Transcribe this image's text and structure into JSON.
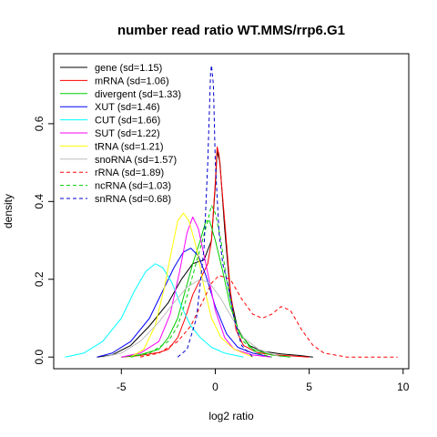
{
  "chart_data": {
    "type": "line",
    "title": "number read ratio WT.MMS/rrp6.G1",
    "xlabel": "log2 ratio",
    "ylabel": "density",
    "xlim": [
      -8.6,
      10.3
    ],
    "ylim": [
      -0.03,
      0.78
    ],
    "x_ticks": [
      -5,
      0,
      5,
      10
    ],
    "x_tick_labels": [
      "-5",
      "0",
      "5",
      "10"
    ],
    "y_ticks": [
      0.0,
      0.2,
      0.4,
      0.6
    ],
    "y_tick_labels": [
      "0.0",
      "0.2",
      "0.4",
      "0.6"
    ],
    "grid": false,
    "legend_position": "top-left",
    "series": [
      {
        "name": "gene (sd=1.15)",
        "color": "#000000",
        "dash": "solid",
        "points": [
          [
            -6.3,
            0
          ],
          [
            -5.5,
            0.005
          ],
          [
            -4.5,
            0.03
          ],
          [
            -3.5,
            0.08
          ],
          [
            -2.5,
            0.14
          ],
          [
            -1.8,
            0.2
          ],
          [
            -1.2,
            0.24
          ],
          [
            -0.6,
            0.25
          ],
          [
            -0.2,
            0.3
          ],
          [
            0,
            0.44
          ],
          [
            0.1,
            0.53
          ],
          [
            0.25,
            0.5
          ],
          [
            0.5,
            0.33
          ],
          [
            0.8,
            0.16
          ],
          [
            1.2,
            0.07
          ],
          [
            1.8,
            0.03
          ],
          [
            2.5,
            0.015
          ],
          [
            3.5,
            0.008
          ],
          [
            4.5,
            0.004
          ],
          [
            5.2,
            0
          ]
        ]
      },
      {
        "name": "mRNA (sd=1.06)",
        "color": "#ff0000",
        "dash": "solid",
        "points": [
          [
            -5,
            0
          ],
          [
            -4,
            0.004
          ],
          [
            -3,
            0.012
          ],
          [
            -2.5,
            0.02
          ],
          [
            -2,
            0.05
          ],
          [
            -1.6,
            0.1
          ],
          [
            -1.2,
            0.16
          ],
          [
            -0.8,
            0.2
          ],
          [
            -0.4,
            0.24
          ],
          [
            -0.2,
            0.3
          ],
          [
            0,
            0.45
          ],
          [
            0.1,
            0.54
          ],
          [
            0.2,
            0.52
          ],
          [
            0.5,
            0.35
          ],
          [
            0.8,
            0.17
          ],
          [
            1.1,
            0.07
          ],
          [
            1.5,
            0.03
          ],
          [
            2.2,
            0.012
          ],
          [
            3,
            0.006
          ],
          [
            4,
            0.003
          ],
          [
            5,
            0
          ]
        ]
      },
      {
        "name": "divergent (sd=1.33)",
        "color": "#00cd00",
        "dash": "solid",
        "points": [
          [
            -5,
            0
          ],
          [
            -4,
            0.006
          ],
          [
            -3,
            0.02
          ],
          [
            -2.5,
            0.05
          ],
          [
            -2,
            0.1
          ],
          [
            -1.6,
            0.17
          ],
          [
            -1.2,
            0.24
          ],
          [
            -0.8,
            0.3
          ],
          [
            -0.5,
            0.35
          ],
          [
            -0.3,
            0.35
          ],
          [
            0,
            0.3
          ],
          [
            0.4,
            0.22
          ],
          [
            0.8,
            0.13
          ],
          [
            1.3,
            0.06
          ],
          [
            2,
            0.02
          ],
          [
            3,
            0.005
          ],
          [
            4,
            0
          ]
        ]
      },
      {
        "name": "XUT (sd=1.46)",
        "color": "#0000ff",
        "dash": "solid",
        "points": [
          [
            -6.3,
            0
          ],
          [
            -5.5,
            0.01
          ],
          [
            -4.5,
            0.04
          ],
          [
            -3.5,
            0.1
          ],
          [
            -2.8,
            0.17
          ],
          [
            -2.2,
            0.23
          ],
          [
            -1.7,
            0.27
          ],
          [
            -1.3,
            0.28
          ],
          [
            -0.9,
            0.26
          ],
          [
            -0.5,
            0.21
          ],
          [
            0,
            0.13
          ],
          [
            0.6,
            0.06
          ],
          [
            1.2,
            0.025
          ],
          [
            2,
            0.01
          ],
          [
            3,
            0
          ]
        ]
      },
      {
        "name": "CUT (sd=1.66)",
        "color": "#00ffff",
        "dash": "solid",
        "points": [
          [
            -8,
            0
          ],
          [
            -7,
            0.01
          ],
          [
            -6,
            0.04
          ],
          [
            -5,
            0.1
          ],
          [
            -4.3,
            0.17
          ],
          [
            -3.7,
            0.22
          ],
          [
            -3.2,
            0.24
          ],
          [
            -2.8,
            0.23
          ],
          [
            -2.3,
            0.19
          ],
          [
            -1.8,
            0.13
          ],
          [
            -1.3,
            0.08
          ],
          [
            -0.8,
            0.05
          ],
          [
            -0.2,
            0.025
          ],
          [
            0.5,
            0.01
          ],
          [
            1.5,
            0
          ]
        ]
      },
      {
        "name": "SUT (sd=1.22)",
        "color": "#ff00ff",
        "dash": "solid",
        "points": [
          [
            -5,
            0
          ],
          [
            -4,
            0.01
          ],
          [
            -3,
            0.04
          ],
          [
            -2.4,
            0.11
          ],
          [
            -1.9,
            0.22
          ],
          [
            -1.5,
            0.32
          ],
          [
            -1.2,
            0.36
          ],
          [
            -0.9,
            0.33
          ],
          [
            -0.5,
            0.24
          ],
          [
            0,
            0.12
          ],
          [
            0.5,
            0.05
          ],
          [
            1,
            0.02
          ],
          [
            2,
            0.005
          ],
          [
            3,
            0
          ]
        ]
      },
      {
        "name": "tRNA (sd=1.21)",
        "color": "#ffff00",
        "dash": "solid",
        "points": [
          [
            -4.5,
            0
          ],
          [
            -3.8,
            0.02
          ],
          [
            -3.2,
            0.08
          ],
          [
            -2.7,
            0.18
          ],
          [
            -2.3,
            0.28
          ],
          [
            -2,
            0.35
          ],
          [
            -1.7,
            0.37
          ],
          [
            -1.4,
            0.35
          ],
          [
            -1,
            0.28
          ],
          [
            -0.6,
            0.18
          ],
          [
            -0.2,
            0.1
          ],
          [
            0.3,
            0.05
          ],
          [
            1,
            0.02
          ],
          [
            2,
            0
          ]
        ]
      },
      {
        "name": "snoRNA (sd=1.57)",
        "color": "#bebebe",
        "dash": "solid",
        "points": [
          [
            -6,
            0
          ],
          [
            -5,
            0.01
          ],
          [
            -4,
            0.04
          ],
          [
            -3,
            0.09
          ],
          [
            -2.2,
            0.14
          ],
          [
            -1.5,
            0.18
          ],
          [
            -0.8,
            0.2
          ],
          [
            -0.3,
            0.19
          ],
          [
            0.3,
            0.15
          ],
          [
            0.9,
            0.1
          ],
          [
            1.5,
            0.05
          ],
          [
            2.3,
            0.02
          ],
          [
            3.5,
            0
          ]
        ]
      },
      {
        "name": "rRNA (sd=1.89)",
        "color": "#ff0000",
        "dash": "dashed",
        "points": [
          [
            -4,
            0
          ],
          [
            -3,
            0.01
          ],
          [
            -2,
            0.04
          ],
          [
            -1.3,
            0.08
          ],
          [
            -0.7,
            0.14
          ],
          [
            -0.2,
            0.19
          ],
          [
            0.2,
            0.21
          ],
          [
            0.8,
            0.2
          ],
          [
            1.4,
            0.15
          ],
          [
            2,
            0.11
          ],
          [
            2.5,
            0.1
          ],
          [
            3,
            0.11
          ],
          [
            3.5,
            0.13
          ],
          [
            4,
            0.12
          ],
          [
            4.6,
            0.07
          ],
          [
            5.2,
            0.03
          ],
          [
            5.8,
            0.01
          ],
          [
            7,
            0
          ],
          [
            9.7,
            0
          ]
        ]
      },
      {
        "name": "ncRNA (sd=1.03)",
        "color": "#00cd00",
        "dash": "dashed",
        "points": [
          [
            -4.5,
            0
          ],
          [
            -3.5,
            0.01
          ],
          [
            -2.5,
            0.04
          ],
          [
            -2,
            0.08
          ],
          [
            -1.6,
            0.14
          ],
          [
            -1.2,
            0.21
          ],
          [
            -0.8,
            0.28
          ],
          [
            -0.4,
            0.35
          ],
          [
            -0.2,
            0.39
          ],
          [
            0,
            0.37
          ],
          [
            0.3,
            0.3
          ],
          [
            0.6,
            0.2
          ],
          [
            1,
            0.1
          ],
          [
            1.5,
            0.04
          ],
          [
            2.2,
            0.01
          ],
          [
            3,
            0
          ]
        ]
      },
      {
        "name": "snRNA (sd=0.68)",
        "color": "#0000cd",
        "dash": "dashed",
        "points": [
          [
            -2,
            0
          ],
          [
            -1.5,
            0.02
          ],
          [
            -1,
            0.1
          ],
          [
            -0.6,
            0.28
          ],
          [
            -0.4,
            0.5
          ],
          [
            -0.25,
            0.73
          ],
          [
            -0.2,
            0.75
          ],
          [
            -0.1,
            0.7
          ],
          [
            0,
            0.5
          ],
          [
            0.2,
            0.32
          ],
          [
            0.4,
            0.24
          ],
          [
            0.7,
            0.18
          ],
          [
            1,
            0.1
          ],
          [
            1.4,
            0.03
          ],
          [
            2,
            0
          ]
        ]
      }
    ]
  }
}
